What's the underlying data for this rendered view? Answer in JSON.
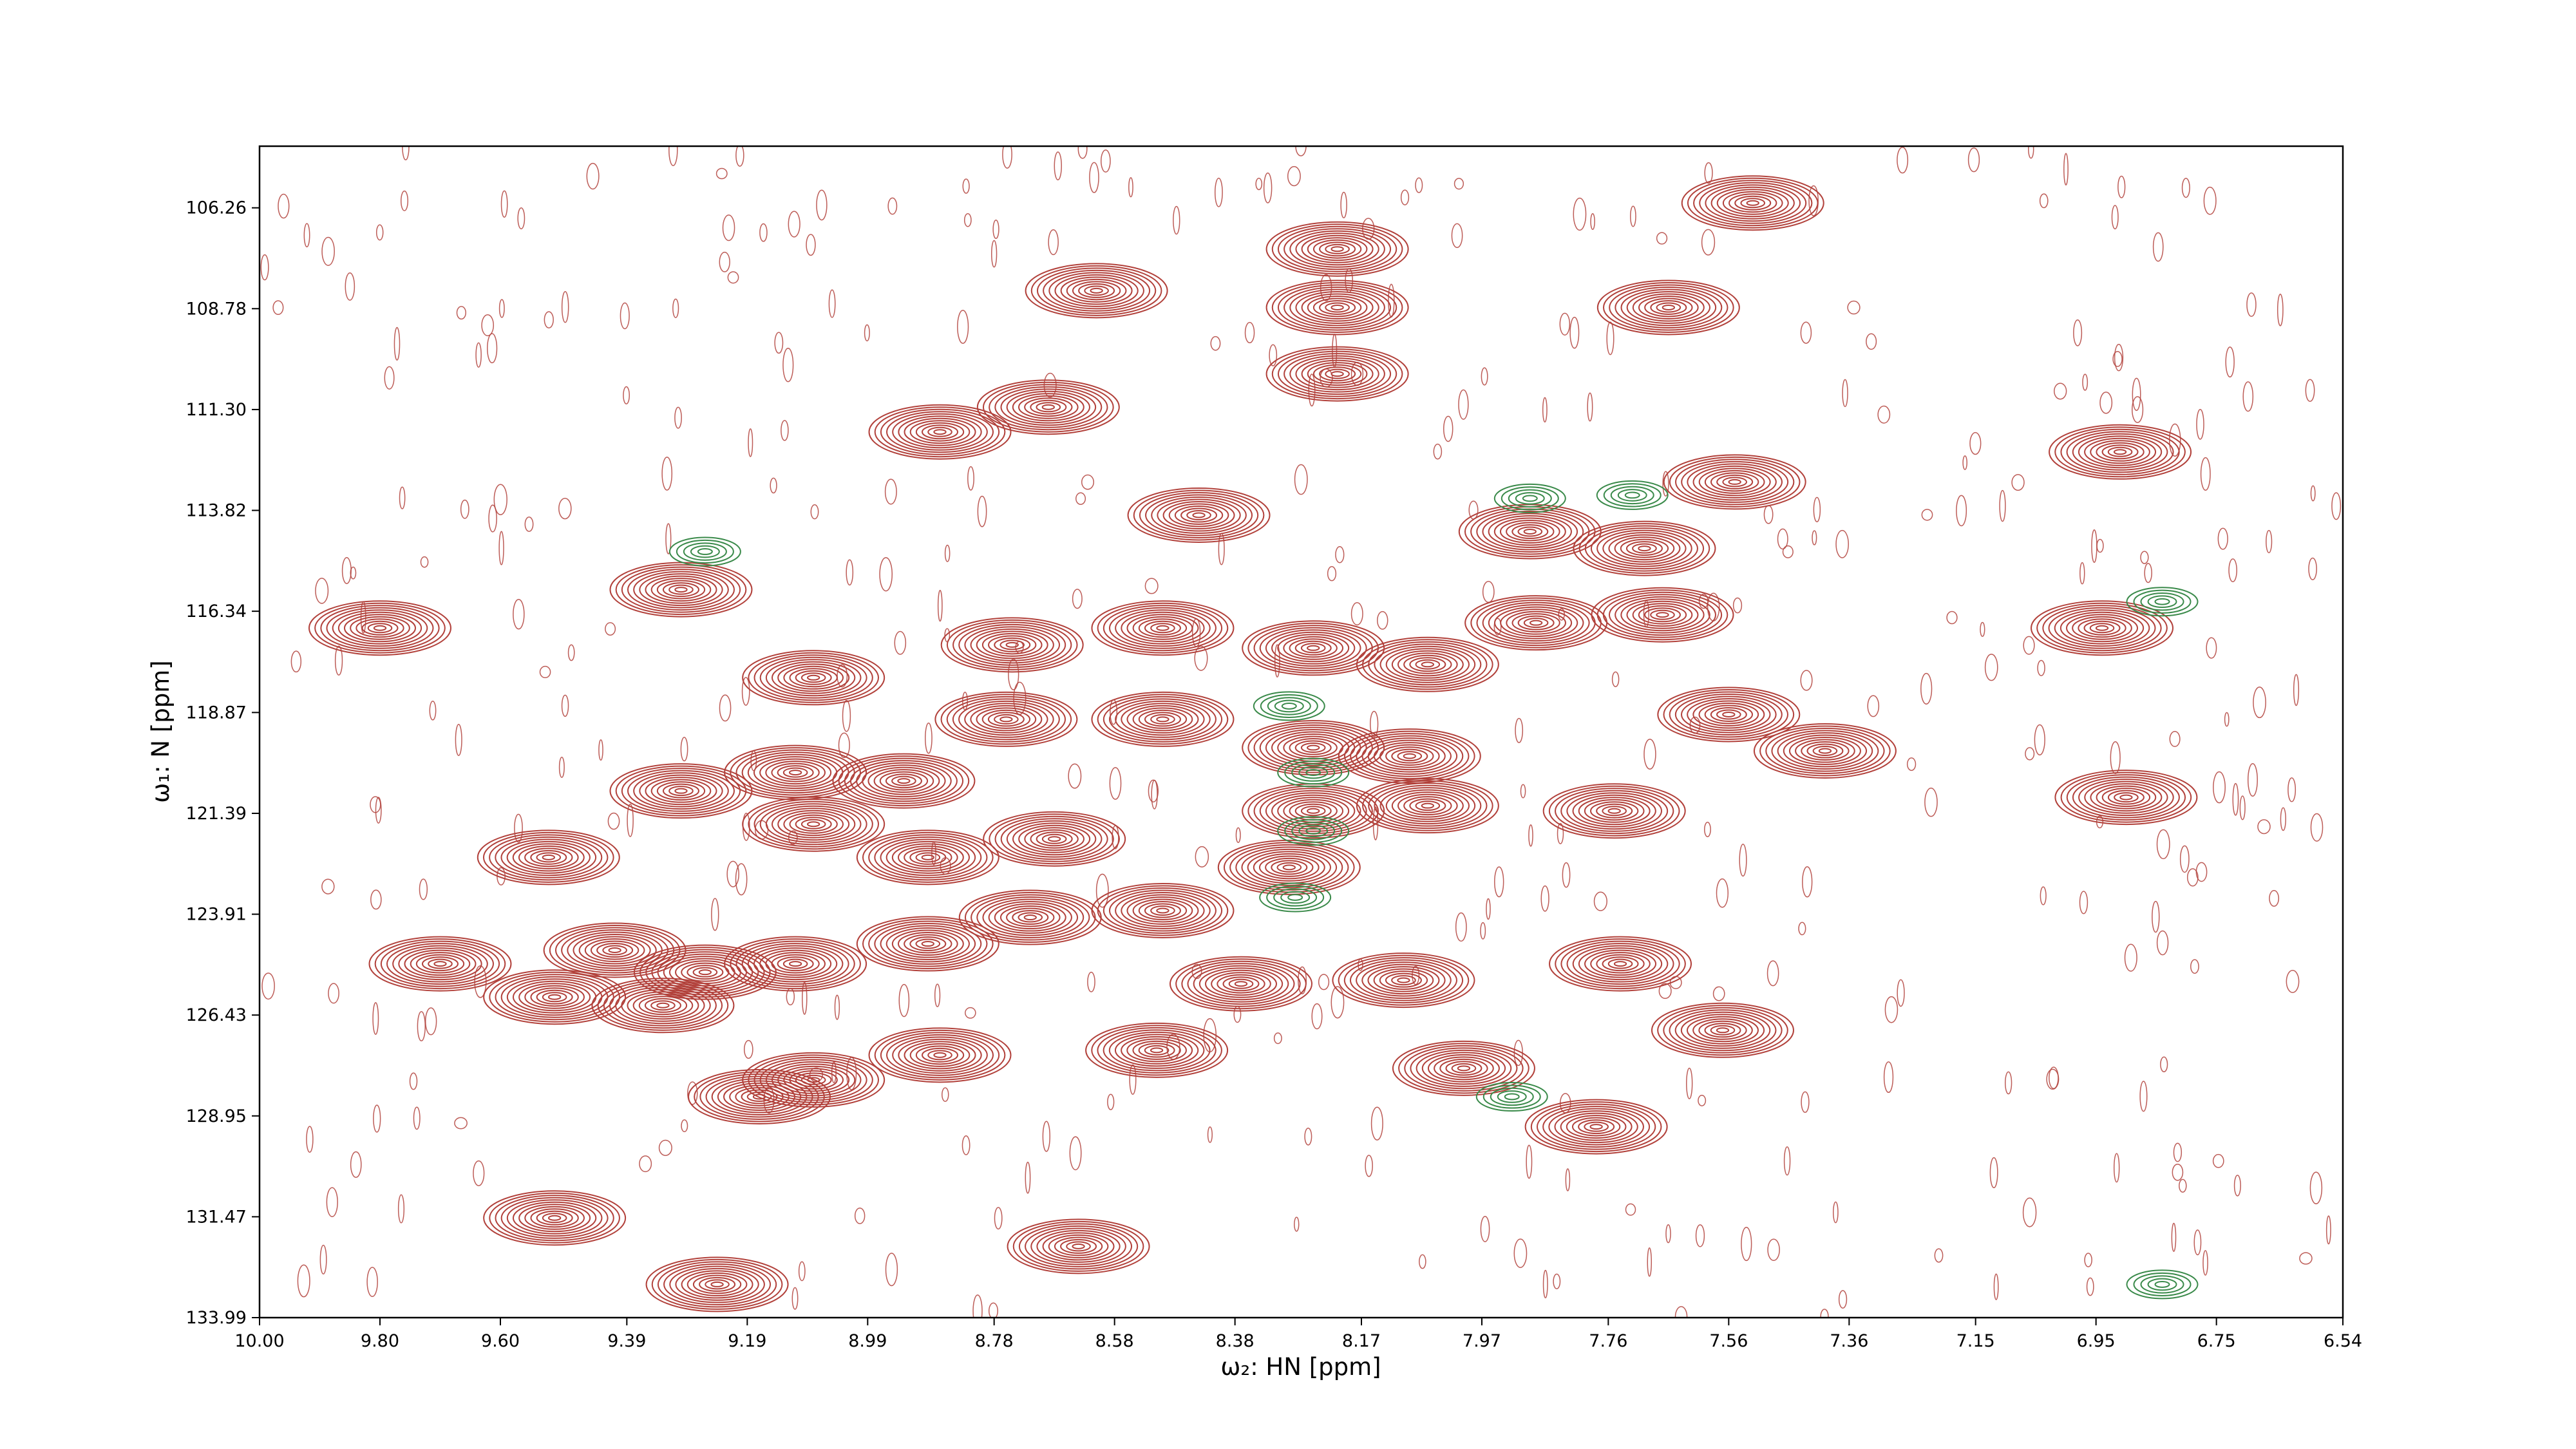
{
  "chart_data": {
    "type": "contour",
    "x_label": "ω₂: HN [ppm]",
    "y_label": "ω₁: N [ppm]",
    "xlim": [
      10.0,
      6.54
    ],
    "ylim": [
      133.99,
      104.72
    ],
    "xticks": [
      {
        "value": 10.0,
        "label": "10.00"
      },
      {
        "value": 9.8,
        "label": "9.80"
      },
      {
        "value": 9.6,
        "label": "9.60"
      },
      9.39,
      9.19,
      8.99,
      8.78,
      8.58,
      8.38,
      8.17,
      7.97,
      7.76,
      7.56,
      7.36,
      7.15,
      6.95,
      6.75,
      6.54
    ],
    "yticks": [
      106.26,
      108.78,
      {
        "value": 111.3,
        "label": "111.30"
      },
      113.82,
      116.34,
      118.87,
      121.39,
      123.91,
      126.43,
      128.95,
      131.47,
      133.99
    ],
    "series": [
      {
        "color": "#b2413b",
        "x": [
          7.52,
          8.61,
          8.21,
          8.21,
          8.21,
          7.66,
          8.69,
          8.87,
          7.55,
          6.91,
          8.44,
          9.3,
          9.8,
          6.94,
          7.89,
          7.7,
          7.88,
          7.67,
          8.75,
          8.5,
          8.25,
          8.06,
          9.08,
          8.76,
          8.5,
          7.56,
          7.4,
          8.25,
          8.09,
          9.3,
          9.11,
          8.93,
          6.9,
          7.75,
          8.25,
          8.06,
          9.08,
          9.52,
          8.89,
          8.68,
          8.29,
          8.72,
          8.5,
          9.41,
          9.11,
          8.89,
          9.7,
          9.26,
          9.51,
          9.33,
          7.74,
          8.1,
          8.37,
          7.57,
          8.51,
          8.87,
          8.0,
          9.08,
          9.17,
          7.78,
          9.51,
          9.24,
          8.64
        ],
        "y": [
          106.14,
          108.33,
          107.29,
          108.75,
          110.41,
          108.75,
          111.24,
          111.86,
          113.11,
          112.36,
          113.94,
          115.8,
          116.76,
          116.76,
          114.35,
          114.77,
          116.63,
          116.43,
          117.18,
          116.76,
          117.26,
          117.67,
          118.0,
          119.04,
          119.04,
          118.92,
          119.83,
          119.75,
          119.96,
          120.83,
          120.37,
          120.58,
          120.99,
          121.33,
          121.33,
          121.2,
          121.66,
          122.49,
          122.49,
          122.03,
          122.74,
          123.99,
          123.82,
          124.81,
          125.15,
          124.65,
          125.15,
          125.36,
          125.98,
          126.19,
          125.15,
          125.56,
          125.65,
          126.81,
          127.31,
          127.43,
          127.76,
          128.05,
          128.47,
          129.22,
          131.5,
          133.16,
          132.21
        ]
      },
      {
        "color": "#3a8a4a",
        "x": [
          9.26,
          7.72,
          7.89,
          8.25,
          8.25,
          8.28,
          6.84,
          6.84,
          7.92,
          8.29
        ],
        "y": [
          114.85,
          113.44,
          113.52,
          120.37,
          121.83,
          123.49,
          116.1,
          133.16,
          128.47,
          118.71
        ]
      }
    ]
  }
}
